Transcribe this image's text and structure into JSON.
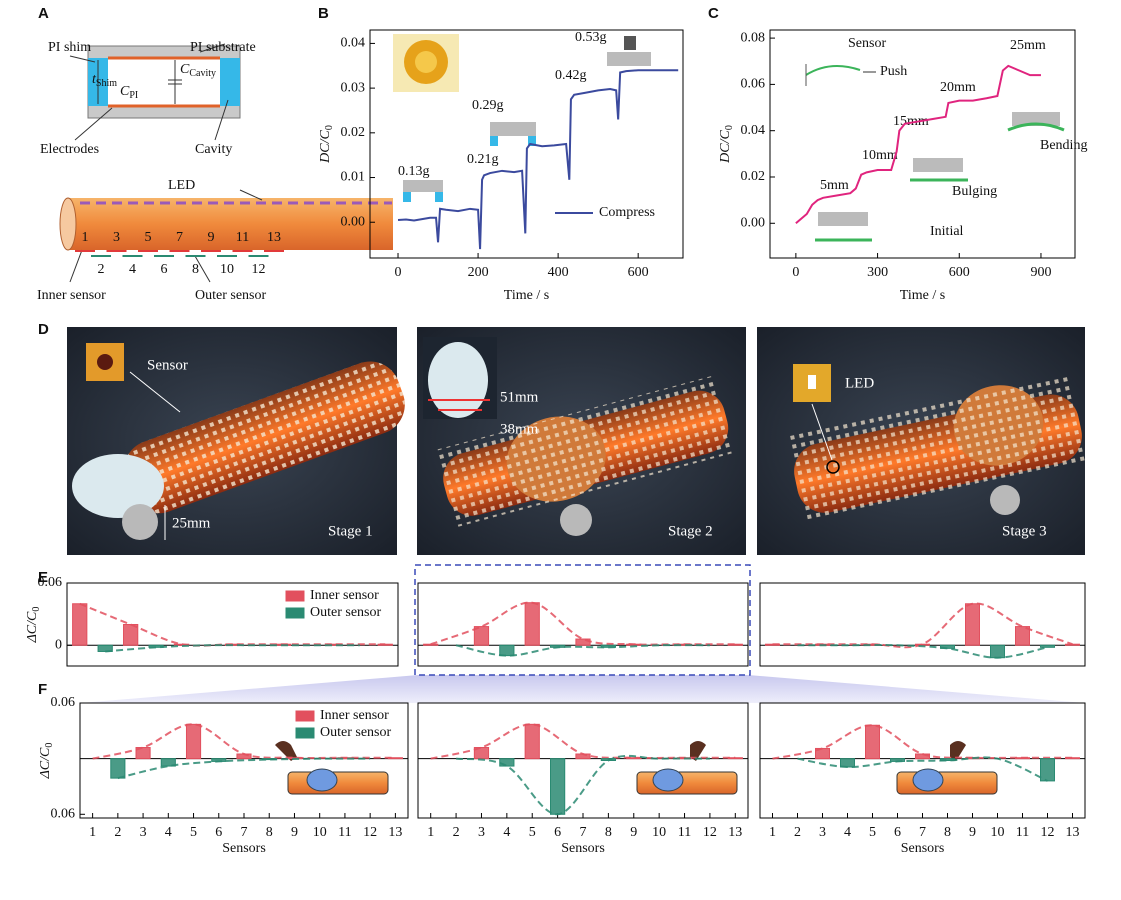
{
  "panel_labels": [
    "A",
    "B",
    "C",
    "D",
    "E",
    "F"
  ],
  "diagram_a": {
    "pi_shim": "PI shim",
    "pi_substrate": "PI substrate",
    "t_shim": {
      "main": "t",
      "sub": "Shim"
    },
    "c_pi": {
      "main": "C",
      "sub": "PI"
    },
    "c_cavity": {
      "main": "C",
      "sub": "Cavity"
    },
    "electrodes": "Electrodes",
    "cavity": "Cavity",
    "led": "LED",
    "sensor_numbers_top": [
      "1",
      "3",
      "5",
      "7",
      "9",
      "11",
      "13"
    ],
    "sensor_numbers_bottom": [
      "2",
      "4",
      "6",
      "8",
      "10",
      "12"
    ],
    "inner_sensor": "Inner sensor",
    "outer_sensor": "Outer sensor"
  },
  "photos_d": [
    {
      "labels": [
        "Sensor",
        "25mm"
      ],
      "stage": "Stage 1"
    },
    {
      "labels": [
        "51mm",
        "38mm"
      ],
      "stage": "Stage 2"
    },
    {
      "labels": [
        "LED"
      ],
      "stage": "Stage 3"
    }
  ],
  "chart_data": [
    {
      "type": "line",
      "y_label": {
        "main": "DC/C",
        "sub": "0"
      },
      "x_label": "Time / s",
      "xlim": [
        -70,
        712
      ],
      "xticks": [
        0,
        200,
        400,
        600
      ],
      "ylim": [
        -0.008,
        0.043
      ],
      "yticks": [
        {
          "value": 0,
          "label": "0.00"
        },
        0.01,
        0.02,
        0.03,
        0.04
      ],
      "legend": "bottom-right",
      "annotations": [
        "0.13g",
        "0.21g",
        "0.29g",
        "0.42g",
        "0.53g"
      ],
      "series": [
        {
          "name": "Compress",
          "color": "#3b4a9e",
          "x": [
            0,
            20,
            40,
            60,
            80,
            95,
            100,
            105,
            120,
            150,
            180,
            200,
            205,
            210,
            215,
            230,
            260,
            290,
            310,
            318,
            322,
            330,
            360,
            390,
            420,
            428,
            432,
            440,
            470,
            500,
            530,
            545,
            550,
            555,
            570,
            600,
            650,
            700
          ],
          "values": [
            0.0005,
            0.0006,
            0.0004,
            0.0007,
            0.001,
            0.001,
            -0.0045,
            0.003,
            0.0028,
            0.0025,
            0.003,
            0.0028,
            -0.006,
            0.0095,
            0.0105,
            0.011,
            0.0115,
            0.0112,
            0.0115,
            -0.0025,
            0.0165,
            0.0175,
            0.017,
            0.0172,
            0.0175,
            0.0095,
            0.0275,
            0.0285,
            0.029,
            0.0295,
            0.0298,
            0.0295,
            0.023,
            0.0335,
            0.0338,
            0.034,
            0.034,
            0.034
          ]
        }
      ]
    },
    {
      "type": "line",
      "y_label": {
        "main": "DC/C",
        "sub": "0"
      },
      "x_label": "Time / s",
      "xlim": [
        -95,
        1025
      ],
      "xticks": [
        0,
        300,
        600,
        900
      ],
      "ylim": [
        -0.015,
        0.0835
      ],
      "yticks": [
        {
          "value": 0,
          "label": "0.00"
        },
        0.02,
        0.04,
        0.06,
        0.08
      ],
      "annotations": [
        "Sensor",
        "Push",
        "5mm",
        "10mm",
        "15mm",
        "20mm",
        "25mm",
        "Bulging",
        "Initial",
        "Bending"
      ],
      "series": [
        {
          "color": "#e0247e",
          "x": [
            0,
            20,
            40,
            60,
            80,
            100,
            150,
            200,
            220,
            240,
            260,
            300,
            350,
            370,
            380,
            400,
            450,
            500,
            550,
            560,
            600,
            650,
            700,
            740,
            760,
            780,
            820,
            860,
            900
          ],
          "values": [
            0,
            0.002,
            0.004,
            0.008,
            0.01,
            0.011,
            0.012,
            0.013,
            0.015,
            0.021,
            0.022,
            0.023,
            0.023,
            0.031,
            0.04,
            0.043,
            0.044,
            0.045,
            0.046,
            0.052,
            0.053,
            0.053,
            0.054,
            0.055,
            0.066,
            0.068,
            0.066,
            0.064,
            0.064
          ]
        }
      ]
    },
    {
      "type": "bar",
      "y_label": {
        "main": "ΔC/C",
        "sub": "0"
      },
      "xlim": [
        0.5,
        13.5
      ],
      "ylim": [
        -0.02,
        0.06
      ],
      "yticks": [
        0.06,
        0
      ],
      "legend": "top-right",
      "series": [
        {
          "name": "Inner sensor",
          "color": "#e2505e",
          "x": [
            1,
            3,
            5,
            7,
            9,
            11,
            13
          ],
          "values": [
            0.04,
            0.02,
            0.001,
            0.001,
            0.001,
            0.001,
            0.001
          ]
        },
        {
          "name": "Outer sensor",
          "color": "#2a8a72",
          "x": [
            2,
            4,
            6,
            8,
            10,
            12
          ],
          "values": [
            -0.006,
            -0.002,
            0,
            0,
            0,
            0
          ]
        }
      ]
    },
    {
      "type": "bar",
      "xlim": [
        0.5,
        13.5
      ],
      "ylim": [
        -0.02,
        0.06
      ],
      "series": [
        {
          "color": "#e2505e",
          "x": [
            1,
            3,
            5,
            7,
            9,
            11,
            13
          ],
          "values": [
            0.001,
            0.018,
            0.041,
            0.006,
            0.001,
            0.001,
            0.001
          ]
        },
        {
          "color": "#2a8a72",
          "x": [
            2,
            4,
            6,
            8,
            10,
            12
          ],
          "values": [
            0,
            -0.01,
            -0.002,
            -0.002,
            0,
            0
          ]
        }
      ]
    },
    {
      "type": "bar",
      "xlim": [
        0.5,
        13.5
      ],
      "ylim": [
        -0.02,
        0.06
      ],
      "series": [
        {
          "color": "#e2505e",
          "x": [
            1,
            3,
            5,
            7,
            9,
            11,
            13
          ],
          "values": [
            0.001,
            0.001,
            0.001,
            0.001,
            0.04,
            0.018,
            0.001
          ]
        },
        {
          "color": "#2a8a72",
          "x": [
            2,
            4,
            6,
            8,
            10,
            12
          ],
          "values": [
            0,
            0,
            0,
            -0.003,
            -0.012,
            -0.002
          ]
        }
      ]
    },
    {
      "type": "bar",
      "y_label": {
        "main": "ΔC/C",
        "sub": "0"
      },
      "x_label": "Sensors",
      "xlim": [
        0.5,
        13.5
      ],
      "xticks": [
        1,
        2,
        3,
        4,
        5,
        6,
        7,
        8,
        9,
        10,
        11,
        12,
        13
      ],
      "ylim": [
        -0.064,
        0.06
      ],
      "yticks": [
        0.06,
        {
          "value": -0.06,
          "label": "0.06"
        }
      ],
      "legend": "top-right",
      "series": [
        {
          "name": "Inner sensor",
          "color": "#e2505e",
          "x": [
            1,
            3,
            5,
            7,
            9,
            11,
            13
          ],
          "values": [
            0,
            0.012,
            0.037,
            0.005,
            0.001,
            0.001,
            0.001
          ]
        },
        {
          "name": "Outer sensor",
          "color": "#2a8a72",
          "x": [
            2,
            4,
            6,
            8,
            10,
            12
          ],
          "values": [
            -0.021,
            -0.008,
            -0.003,
            -0.001,
            0,
            0
          ]
        }
      ]
    },
    {
      "type": "bar",
      "x_label": "Sensors",
      "xlim": [
        0.5,
        13.5
      ],
      "xticks": [
        1,
        2,
        3,
        4,
        5,
        6,
        7,
        8,
        9,
        10,
        11,
        12,
        13
      ],
      "ylim": [
        -0.064,
        0.06
      ],
      "series": [
        {
          "color": "#e2505e",
          "x": [
            1,
            3,
            5,
            7,
            9,
            11,
            13
          ],
          "values": [
            0,
            0.012,
            0.037,
            0.005,
            0.001,
            0.001,
            0.001
          ]
        },
        {
          "color": "#2a8a72",
          "x": [
            2,
            4,
            6,
            8,
            10,
            12
          ],
          "values": [
            0,
            -0.008,
            -0.06,
            -0.002,
            0,
            0
          ]
        }
      ]
    },
    {
      "type": "bar",
      "x_label": "Sensors",
      "xlim": [
        0.5,
        13.5
      ],
      "xticks": [
        1,
        2,
        3,
        4,
        5,
        6,
        7,
        8,
        9,
        10,
        11,
        12,
        13
      ],
      "ylim": [
        -0.064,
        0.06
      ],
      "series": [
        {
          "color": "#e2505e",
          "x": [
            1,
            3,
            5,
            7,
            9,
            11,
            13
          ],
          "values": [
            0,
            0.011,
            0.036,
            0.005,
            0.001,
            0.001,
            0.001
          ]
        },
        {
          "color": "#2a8a72",
          "x": [
            2,
            4,
            6,
            8,
            10,
            12
          ],
          "values": [
            0,
            -0.009,
            -0.003,
            -0.002,
            0,
            -0.024
          ]
        }
      ]
    }
  ]
}
